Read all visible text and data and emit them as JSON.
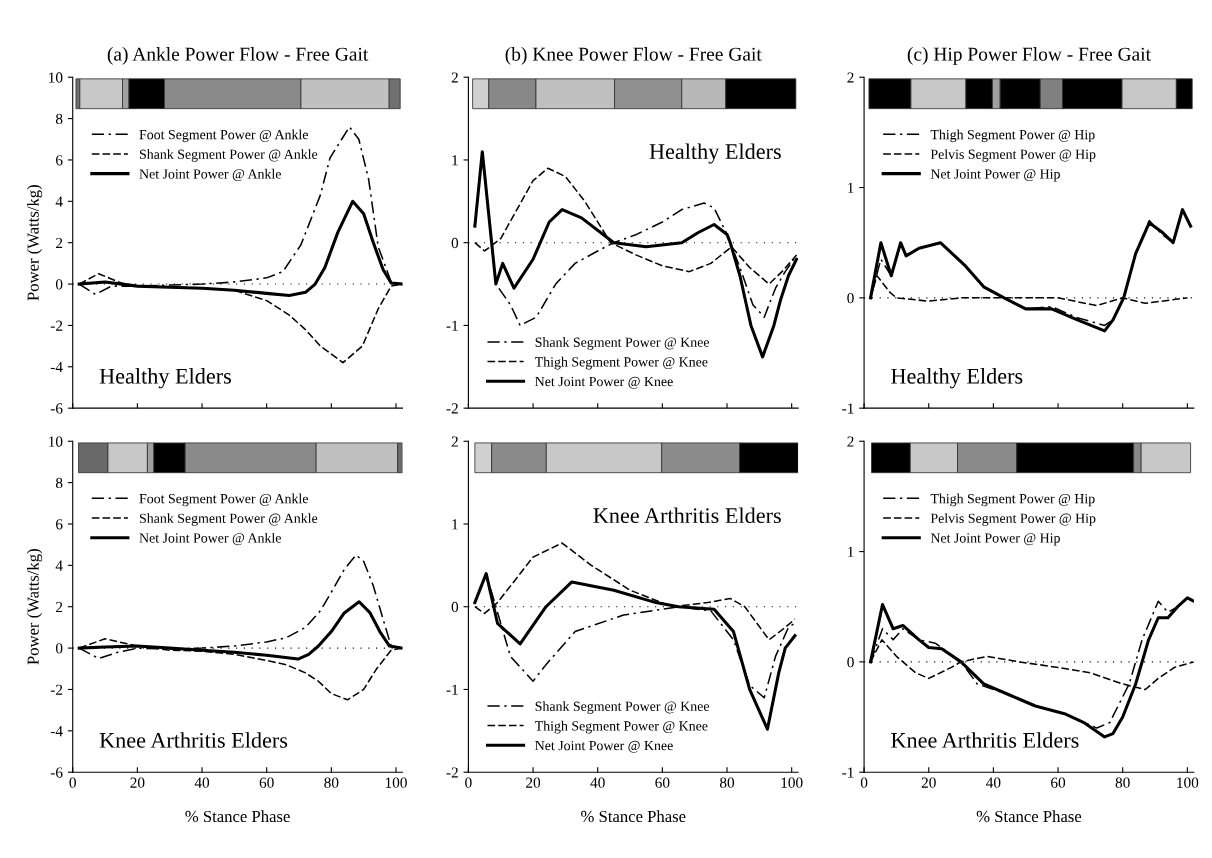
{
  "chart_data": [
    {
      "type": "line",
      "title": "(a) Ankle Power Flow - Free Gait",
      "ylabel": "Power (Watts/kg)",
      "annotations": [
        "Healthy Elders"
      ],
      "legend": "top left",
      "tick_labels": "y",
      "xlim": [
        0,
        102
      ],
      "xticks": [
        0,
        20,
        40,
        60,
        80,
        100
      ],
      "ylim": [
        -6,
        10
      ],
      "yticks": [
        -6,
        -4,
        -2,
        0,
        2,
        4,
        6,
        8,
        10
      ],
      "ref_lines": [
        {
          "axis": "y",
          "value": 0,
          "line_style": "dotted",
          "color": "#000000"
        }
      ],
      "bands": [
        {
          "axis": "x",
          "from": 1,
          "to": 2.2,
          "color": "#707070"
        },
        {
          "axis": "x",
          "from": 2.2,
          "to": 15.4,
          "color": "#c8c8c8"
        },
        {
          "axis": "x",
          "from": 15.4,
          "to": 17.4,
          "color": "#a0a0a0"
        },
        {
          "axis": "x",
          "from": 17.4,
          "to": 28.4,
          "color": "#000000"
        },
        {
          "axis": "x",
          "from": 28.4,
          "to": 70.6,
          "color": "#8a8a8a"
        },
        {
          "axis": "x",
          "from": 70.6,
          "to": 97.9,
          "color": "#c0c0c0"
        },
        {
          "axis": "x",
          "from": 97.9,
          "to": 101.3,
          "color": "#707070"
        }
      ],
      "series": [
        {
          "name": "Foot Segment Power @ Ankle",
          "color": "#000000",
          "line_style": "dotted",
          "x": [
            2,
            7,
            12,
            20,
            30,
            40,
            50,
            60,
            65,
            70.6,
            76.6,
            79.6,
            85.6,
            88.5,
            91.5,
            94.5,
            98.5,
            102
          ],
          "values": [
            0,
            -0.5,
            -0.1,
            -0.1,
            -0.05,
            0,
            0.1,
            0.3,
            0.6,
            1.9,
            4.3,
            6.1,
            7.6,
            7.0,
            5.1,
            1.8,
            0.1,
            0
          ]
        },
        {
          "name": "Shank Segment Power @ Ankle",
          "color": "#000000",
          "line_style": "dashed",
          "x": [
            2,
            8,
            15,
            20,
            30,
            40,
            50,
            60,
            67,
            72,
            76.6,
            83.6,
            89.6,
            94.5,
            98.5,
            102
          ],
          "values": [
            0,
            0.5,
            0.05,
            -0.1,
            -0.15,
            -0.2,
            -0.3,
            -0.8,
            -1.5,
            -2.2,
            -3.0,
            -3.8,
            -3.0,
            -1.2,
            -0.1,
            0
          ]
        },
        {
          "name": "Net Joint Power @ Ankle",
          "color": "#000000",
          "line_style": "solid",
          "x": [
            2,
            10,
            20,
            30,
            40,
            50,
            60,
            67,
            72,
            75,
            78,
            82,
            86.6,
            90,
            93,
            96,
            98.5,
            102
          ],
          "values": [
            0,
            0.1,
            -0.1,
            -0.15,
            -0.2,
            -0.3,
            -0.45,
            -0.55,
            -0.4,
            0,
            0.8,
            2.5,
            4.0,
            3.4,
            2.0,
            0.7,
            0.05,
            0
          ]
        }
      ]
    },
    {
      "type": "line",
      "title": "(b) Knee Power Flow - Free Gait",
      "annotations": [
        "Healthy Elders"
      ],
      "legend": "bottom left",
      "tick_labels": "y",
      "xlim": [
        0,
        102
      ],
      "xticks": [
        0,
        20,
        40,
        60,
        80,
        100
      ],
      "ylim": [
        -2,
        2
      ],
      "yticks": [
        -2,
        -1,
        0,
        1,
        2
      ],
      "ref_lines": [
        {
          "axis": "y",
          "value": 0,
          "line_style": "dotted",
          "color": "#000000"
        }
      ],
      "bands": [
        {
          "axis": "x",
          "from": 1.3,
          "to": 6.3,
          "color": "#d0d0d0"
        },
        {
          "axis": "x",
          "from": 6.3,
          "to": 20.9,
          "color": "#888888"
        },
        {
          "axis": "x",
          "from": 20.9,
          "to": 45.2,
          "color": "#c0c0c0"
        },
        {
          "axis": "x",
          "from": 45.2,
          "to": 66,
          "color": "#909090"
        },
        {
          "axis": "x",
          "from": 66,
          "to": 79.6,
          "color": "#b8b8b8"
        },
        {
          "axis": "x",
          "from": 79.6,
          "to": 101.3,
          "color": "#000000"
        }
      ],
      "series": [
        {
          "name": "Shank Segment Power @ Knee",
          "color": "#000000",
          "line_style": "dotted",
          "x": [
            2,
            4.3,
            8.5,
            13,
            16,
            21,
            27,
            33,
            40,
            45,
            52,
            60,
            66,
            72.9,
            76,
            80,
            84,
            88,
            91.5,
            95,
            98,
            101.5
          ],
          "values": [
            0.2,
            1.1,
            -0.5,
            -0.75,
            -1.0,
            -0.9,
            -0.5,
            -0.25,
            -0.1,
            0,
            0.1,
            0.25,
            0.4,
            0.48,
            0.42,
            0.1,
            -0.3,
            -0.75,
            -0.9,
            -0.55,
            -0.35,
            -0.15
          ]
        },
        {
          "name": "Thigh Segment Power @ Knee",
          "color": "#000000",
          "line_style": "dashed",
          "x": [
            2,
            5,
            10,
            15,
            20,
            24.6,
            30,
            36,
            44,
            52,
            60,
            68.3,
            75,
            81.4,
            87,
            93,
            97,
            101.5
          ],
          "values": [
            0,
            -0.1,
            0.05,
            0.4,
            0.75,
            0.9,
            0.8,
            0.5,
            0,
            -0.15,
            -0.28,
            -0.35,
            -0.25,
            -0.05,
            -0.3,
            -0.5,
            -0.35,
            -0.15
          ]
        },
        {
          "name": "Net Joint Power @ Knee",
          "color": "#000000",
          "line_style": "solid",
          "x": [
            2,
            4.3,
            8.5,
            10.6,
            14.1,
            20,
            25,
            29,
            35,
            45,
            55,
            66,
            71,
            76,
            80,
            81,
            84,
            87.4,
            91,
            94.5,
            96.5,
            99,
            101.5
          ],
          "values": [
            0.2,
            1.1,
            -0.5,
            -0.25,
            -0.55,
            -0.2,
            0.25,
            0.4,
            0.3,
            0,
            -0.05,
            0,
            0.12,
            0.22,
            0.1,
            0,
            -0.4,
            -1.0,
            -1.38,
            -1.0,
            -0.7,
            -0.4,
            -0.2
          ]
        }
      ]
    },
    {
      "type": "line",
      "title": "(c) Hip Power Flow - Free Gait",
      "annotations": [
        "Healthy Elders"
      ],
      "legend": "top left",
      "tick_labels": "y",
      "xlim": [
        0,
        102
      ],
      "xticks": [
        0,
        20,
        40,
        60,
        80,
        100
      ],
      "ylim": [
        -1,
        2
      ],
      "yticks": [
        -1,
        0,
        1,
        2
      ],
      "ref_lines": [
        {
          "axis": "y",
          "value": 0,
          "line_style": "dotted",
          "color": "#000000"
        }
      ],
      "bands": [
        {
          "axis": "x",
          "from": 1.5,
          "to": 14.5,
          "color": "#000000"
        },
        {
          "axis": "x",
          "from": 14.5,
          "to": 31.5,
          "color": "#c8c8c8"
        },
        {
          "axis": "x",
          "from": 31.5,
          "to": 39.7,
          "color": "#000000"
        },
        {
          "axis": "x",
          "from": 39.7,
          "to": 42.1,
          "color": "#a0a0a0"
        },
        {
          "axis": "x",
          "from": 42.1,
          "to": 54.5,
          "color": "#000000"
        },
        {
          "axis": "x",
          "from": 54.5,
          "to": 61.4,
          "color": "#808080"
        },
        {
          "axis": "x",
          "from": 61.4,
          "to": 79.8,
          "color": "#000000"
        },
        {
          "axis": "x",
          "from": 79.8,
          "to": 96.6,
          "color": "#c8c8c8"
        },
        {
          "axis": "x",
          "from": 96.6,
          "to": 101.5,
          "color": "#000000"
        }
      ],
      "series": [
        {
          "name": "Thigh Segment Power @ Hip",
          "color": "#000000",
          "line_style": "dotted",
          "x": [
            2,
            5.2,
            8.4,
            11.3,
            13,
            17,
            23.6,
            31,
            37,
            43.3,
            50,
            58,
            66,
            74.4,
            77,
            80.3,
            84,
            88.2,
            92,
            95.6,
            98.5,
            101
          ],
          "values": [
            0,
            0.35,
            0.2,
            0.5,
            0.38,
            0.45,
            0.5,
            0.3,
            0.1,
            0,
            -0.1,
            -0.08,
            -0.18,
            -0.25,
            -0.2,
            0,
            0.4,
            0.7,
            0.58,
            0.5,
            0.8,
            0.65
          ]
        },
        {
          "name": "Pelvis Segment Power @ Hip",
          "color": "#000000",
          "line_style": "dashed",
          "x": [
            2,
            4,
            8,
            10,
            20,
            30,
            60,
            72,
            80,
            87,
            100
          ],
          "values": [
            0,
            0.2,
            0.05,
            0,
            -0.03,
            0,
            0,
            -0.07,
            0,
            -0.05,
            0
          ]
        },
        {
          "name": "Net Joint Power @ Hip",
          "color": "#000000",
          "line_style": "solid",
          "x": [
            2,
            5.2,
            8.4,
            11.3,
            13,
            17,
            23.6,
            31,
            37,
            43.3,
            50,
            58,
            66,
            74.4,
            77,
            80.3,
            84,
            88.2,
            92,
            95.6,
            98.5,
            101
          ],
          "values": [
            0,
            0.5,
            0.2,
            0.5,
            0.38,
            0.45,
            0.5,
            0.3,
            0.1,
            0,
            -0.1,
            -0.1,
            -0.2,
            -0.3,
            -0.2,
            0,
            0.4,
            0.68,
            0.6,
            0.5,
            0.8,
            0.65
          ]
        }
      ]
    },
    {
      "type": "line",
      "xlabel": "% Stance Phase",
      "ylabel": "Power (Watts/kg)",
      "annotations": [
        "Knee Arthritis Elders"
      ],
      "legend": "top left",
      "xlim": [
        0,
        102
      ],
      "xticks": [
        0,
        20,
        40,
        60,
        80,
        100
      ],
      "ylim": [
        -6,
        10
      ],
      "yticks": [
        -6,
        -4,
        -2,
        0,
        2,
        4,
        6,
        8,
        10
      ],
      "ref_lines": [
        {
          "axis": "y",
          "value": 0,
          "line_style": "dotted",
          "color": "#000000"
        }
      ],
      "bands": [
        {
          "axis": "x",
          "from": 1.8,
          "to": 10.9,
          "color": "#6a6a6a"
        },
        {
          "axis": "x",
          "from": 10.9,
          "to": 23.1,
          "color": "#c8c8c8"
        },
        {
          "axis": "x",
          "from": 23.1,
          "to": 25.1,
          "color": "#a0a0a0"
        },
        {
          "axis": "x",
          "from": 25.1,
          "to": 34.8,
          "color": "#000000"
        },
        {
          "axis": "x",
          "from": 34.8,
          "to": 75.3,
          "color": "#8a8a8a"
        },
        {
          "axis": "x",
          "from": 75.3,
          "to": 100.5,
          "color": "#c0c0c0"
        },
        {
          "axis": "x",
          "from": 100.5,
          "to": 102,
          "color": "#6a6a6a"
        }
      ],
      "series": [
        {
          "name": "Foot Segment Power @ Ankle",
          "color": "#000000",
          "line_style": "dotted",
          "x": [
            2,
            8,
            14,
            20,
            30,
            40,
            50,
            60,
            66,
            72,
            76.6,
            80,
            84,
            87.6,
            90,
            93,
            96,
            98.5,
            102
          ],
          "values": [
            0,
            -0.5,
            -0.2,
            0,
            -0.05,
            0,
            0.1,
            0.3,
            0.5,
            1.0,
            1.8,
            2.7,
            3.8,
            4.5,
            4.2,
            3.0,
            1.4,
            0.1,
            0
          ]
        },
        {
          "name": "Shank Segment Power @ Ankle",
          "color": "#000000",
          "line_style": "dashed",
          "x": [
            2,
            10,
            20,
            30,
            40,
            50,
            60,
            66,
            72,
            76,
            80,
            85,
            90,
            94,
            98.5,
            102
          ],
          "values": [
            0,
            0.45,
            0.1,
            -0.1,
            -0.15,
            -0.3,
            -0.6,
            -0.8,
            -1.2,
            -1.6,
            -2.2,
            -2.5,
            -2.0,
            -1.0,
            -0.1,
            0
          ]
        },
        {
          "name": "Net Joint Power @ Ankle",
          "color": "#000000",
          "line_style": "solid",
          "x": [
            2,
            10,
            20,
            30,
            40,
            50,
            60,
            69.7,
            73,
            76,
            80,
            84,
            88.6,
            92,
            95,
            98,
            102
          ],
          "values": [
            0,
            0.05,
            0.1,
            0,
            -0.1,
            -0.2,
            -0.35,
            -0.53,
            -0.3,
            0.1,
            0.8,
            1.7,
            2.24,
            1.7,
            0.8,
            0.1,
            0
          ]
        }
      ]
    },
    {
      "type": "line",
      "xlabel": "% Stance Phase",
      "annotations": [
        "Knee Arthritis Elders"
      ],
      "legend": "bottom left",
      "xlim": [
        0,
        102
      ],
      "xticks": [
        0,
        20,
        40,
        60,
        80,
        100
      ],
      "ylim": [
        -2,
        2
      ],
      "yticks": [
        -2,
        -1,
        0,
        1,
        2
      ],
      "ref_lines": [
        {
          "axis": "y",
          "value": 0,
          "line_style": "dotted",
          "color": "#000000"
        }
      ],
      "bands": [
        {
          "axis": "x",
          "from": 2,
          "to": 7.2,
          "color": "#d0d0d0"
        },
        {
          "axis": "x",
          "from": 7.2,
          "to": 24.1,
          "color": "#8a8a8a"
        },
        {
          "axis": "x",
          "from": 24.1,
          "to": 59.8,
          "color": "#c8c8c8"
        },
        {
          "axis": "x",
          "from": 59.8,
          "to": 83.9,
          "color": "#8c8c8c"
        },
        {
          "axis": "x",
          "from": 83.9,
          "to": 102,
          "color": "#000000"
        }
      ],
      "series": [
        {
          "name": "Shank Segment Power @ Knee",
          "color": "#000000",
          "line_style": "dotted",
          "x": [
            2,
            5.5,
            10,
            13,
            20,
            24,
            33,
            48,
            65,
            75,
            82,
            87,
            91.5,
            95,
            99,
            101
          ],
          "values": [
            0.05,
            0.4,
            -0.2,
            -0.6,
            -0.9,
            -0.7,
            -0.3,
            -0.1,
            0,
            -0.05,
            -0.4,
            -0.95,
            -1.1,
            -0.6,
            -0.25,
            -0.2
          ]
        },
        {
          "name": "Thigh Segment Power @ Knee",
          "color": "#000000",
          "line_style": "dashed",
          "x": [
            2,
            5,
            9,
            14,
            20,
            29,
            38,
            50,
            63,
            74,
            81,
            85.5,
            93,
            98,
            101
          ],
          "values": [
            0,
            -0.08,
            0.05,
            0.3,
            0.6,
            0.77,
            0.5,
            0.2,
            0,
            0.05,
            0.1,
            0,
            -0.4,
            -0.25,
            -0.15
          ]
        },
        {
          "name": "Net Joint Power @ Knee",
          "color": "#000000",
          "line_style": "solid",
          "x": [
            2,
            5.5,
            9,
            16,
            24,
            32,
            45,
            58,
            65,
            76,
            82,
            87,
            92.5,
            96,
            98,
            101
          ],
          "values": [
            0.05,
            0.4,
            -0.2,
            -0.45,
            0,
            0.3,
            0.2,
            0.05,
            0,
            -0.03,
            -0.3,
            -1.0,
            -1.48,
            -0.8,
            -0.5,
            -0.35
          ]
        }
      ]
    },
    {
      "type": "line",
      "xlabel": "% Stance Phase",
      "annotations": [
        "Knee Arthritis Elders"
      ],
      "legend": "top left",
      "xlim": [
        0,
        102
      ],
      "xticks": [
        0,
        20,
        40,
        60,
        80,
        100
      ],
      "ylim": [
        -1,
        2
      ],
      "yticks": [
        -1,
        0,
        1,
        2
      ],
      "ref_lines": [
        {
          "axis": "y",
          "value": 0,
          "line_style": "dotted",
          "color": "#000000"
        }
      ],
      "bands": [
        {
          "axis": "x",
          "from": 2.3,
          "to": 14.3,
          "color": "#000000"
        },
        {
          "axis": "x",
          "from": 14.3,
          "to": 28.9,
          "color": "#c8c8c8"
        },
        {
          "axis": "x",
          "from": 28.9,
          "to": 47.2,
          "color": "#8a8a8a"
        },
        {
          "axis": "x",
          "from": 47.2,
          "to": 83.4,
          "color": "#000000"
        },
        {
          "axis": "x",
          "from": 83.4,
          "to": 85.7,
          "color": "#8a8a8a"
        },
        {
          "axis": "x",
          "from": 85.7,
          "to": 101,
          "color": "#c8c8c8"
        }
      ],
      "series": [
        {
          "name": "Thigh Segment Power @ Hip",
          "color": "#000000",
          "line_style": "dotted",
          "x": [
            2,
            5.7,
            9,
            12,
            17,
            22,
            30,
            35,
            45,
            53,
            62,
            72,
            76,
            82,
            86,
            91,
            94,
            97,
            100,
            102
          ],
          "values": [
            0,
            0.3,
            0.2,
            0.3,
            0.2,
            0.17,
            0,
            -0.2,
            -0.3,
            -0.4,
            -0.47,
            -0.6,
            -0.55,
            -0.2,
            0.2,
            0.55,
            0.45,
            0.5,
            0.58,
            0.55
          ]
        },
        {
          "name": "Pelvis Segment Power @ Hip",
          "color": "#000000",
          "line_style": "dashed",
          "x": [
            2,
            5.5,
            10,
            16,
            20,
            27,
            30,
            38,
            48,
            60,
            70,
            80,
            87,
            91,
            96,
            102
          ],
          "values": [
            0,
            0.2,
            0.05,
            -0.1,
            -0.15,
            -0.05,
            0,
            0.05,
            0,
            -0.05,
            -0.1,
            -0.2,
            -0.25,
            -0.15,
            -0.05,
            0
          ]
        },
        {
          "name": "Net Joint Power @ Hip",
          "color": "#000000",
          "line_style": "solid",
          "x": [
            2,
            5.7,
            9,
            12,
            17,
            20,
            24,
            30,
            37,
            45,
            53,
            62,
            68,
            74.4,
            77,
            80,
            84,
            88,
            91,
            94,
            97,
            100,
            102
          ],
          "values": [
            0,
            0.52,
            0.3,
            0.33,
            0.2,
            0.13,
            0.12,
            0,
            -0.2,
            -0.3,
            -0.4,
            -0.47,
            -0.55,
            -0.68,
            -0.65,
            -0.5,
            -0.2,
            0.2,
            0.4,
            0.4,
            0.5,
            0.58,
            0.55
          ]
        }
      ]
    }
  ]
}
